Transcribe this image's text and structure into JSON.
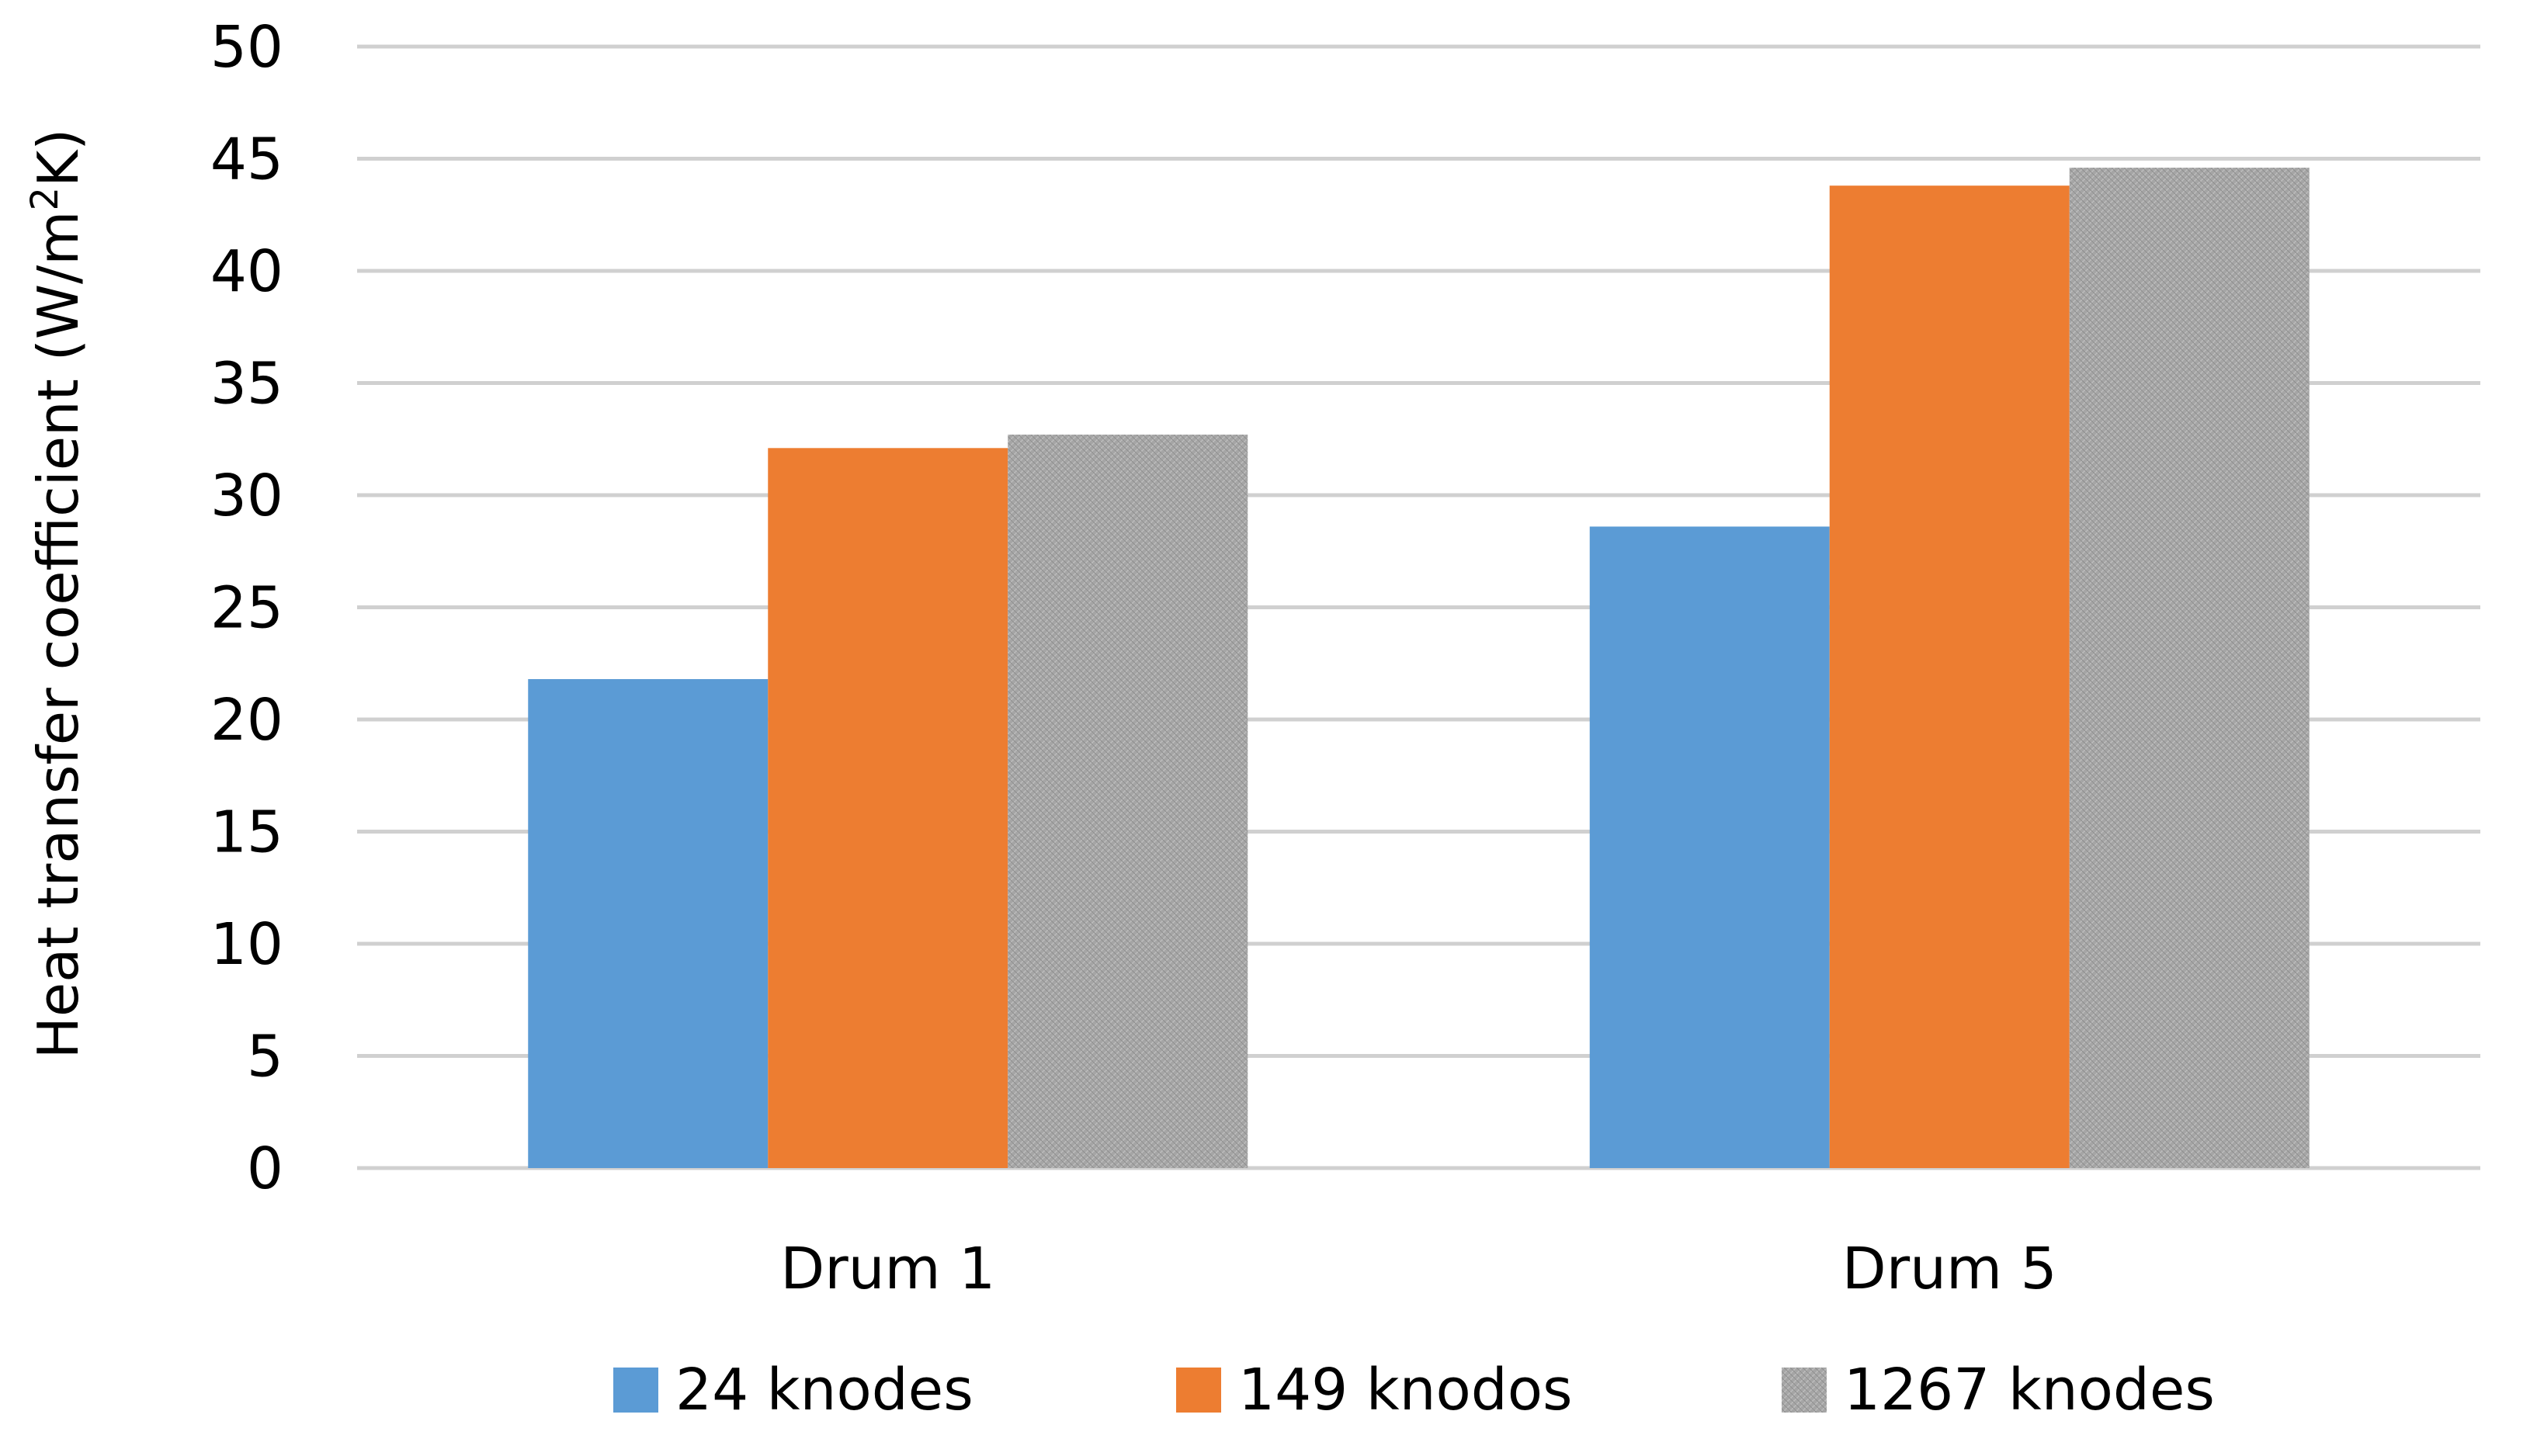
{
  "chart_data": {
    "type": "bar",
    "categories": [
      "Drum 1",
      "Drum 5"
    ],
    "series": [
      {
        "name": "24 knodes",
        "values": [
          21.8,
          28.6
        ],
        "color": "#5B9BD5"
      },
      {
        "name": "149 knodos",
        "values": [
          32.1,
          43.8
        ],
        "color": "#ED7D31"
      },
      {
        "name": "1267 knodes",
        "values": [
          32.7,
          44.6
        ],
        "color": "#A5A5A5"
      }
    ],
    "title": "",
    "xlabel": "",
    "ylabel": "Heat transfer coefficient (W/m²K)",
    "ylabel_parts": {
      "pre": "Heat transfer coefficient (W/m",
      "sup": "2",
      "post": "K)"
    },
    "ylim": [
      0,
      50
    ],
    "yticks": [
      0,
      5,
      10,
      15,
      20,
      25,
      30,
      35,
      40,
      45,
      50
    ],
    "grid": true,
    "legend_position": "bottom"
  }
}
